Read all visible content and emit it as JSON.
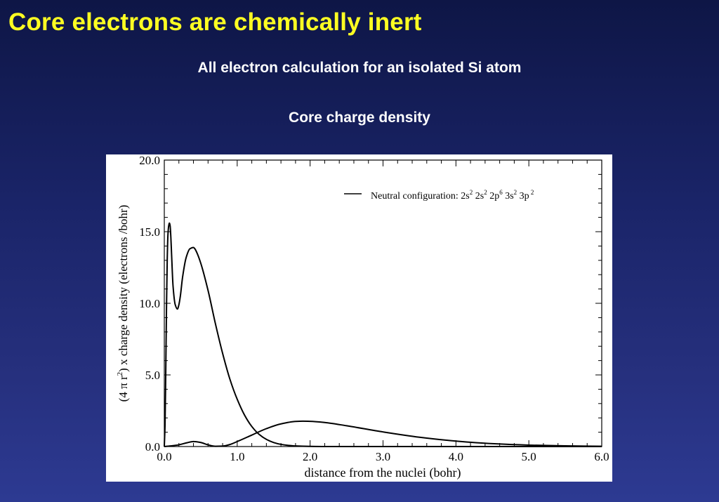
{
  "slide": {
    "title": "Core electrons are chemically inert",
    "subtitle": "All electron calculation for an isolated Si atom",
    "section_label": "Core charge density"
  },
  "colors": {
    "title": "#ffff22",
    "text": "#ffffff",
    "curve": "#000000",
    "plot_background": "#ffffff"
  },
  "chart_data": {
    "type": "line",
    "xlabel": "distance from the nuclei (bohr)",
    "ylabel": "(4 π r²) x charge density (electrons /bohr)",
    "xlim": [
      0.0,
      6.0
    ],
    "ylim": [
      0.0,
      20.0
    ],
    "xticks": [
      "0.0",
      "1.0",
      "2.0",
      "3.0",
      "4.0",
      "5.0",
      "6.0"
    ],
    "yticks": [
      "0.0",
      "5.0",
      "10.0",
      "15.0",
      "20.0"
    ],
    "grid": false,
    "legend": {
      "placement": "top-right",
      "text": "Neutral configuration: 2s² 2s² 2p⁶ 3s² 3p²"
    },
    "series": [
      {
        "x": [
          0.0,
          0.01,
          0.02,
          0.03,
          0.04,
          0.05,
          0.06,
          0.07,
          0.08,
          0.09,
          0.1,
          0.12,
          0.15,
          0.18,
          0.2,
          0.22,
          0.25,
          0.3,
          0.35,
          0.4,
          0.42,
          0.45,
          0.5,
          0.6,
          0.7,
          0.8,
          0.9,
          1.0,
          1.1,
          1.2,
          1.3,
          1.4,
          1.5,
          1.6,
          1.7,
          1.8,
          2.0,
          2.2,
          2.5,
          3.0,
          4.0,
          6.0
        ],
        "values": [
          0.0,
          1.5,
          5.2,
          9.6,
          13.0,
          14.8,
          15.4,
          15.6,
          15.4,
          14.6,
          13.4,
          11.2,
          9.9,
          9.6,
          9.9,
          10.5,
          11.8,
          13.2,
          13.8,
          13.9,
          13.8,
          13.5,
          12.8,
          10.9,
          8.6,
          6.5,
          4.7,
          3.3,
          2.2,
          1.4,
          0.85,
          0.5,
          0.28,
          0.15,
          0.08,
          0.04,
          0.01,
          0.0,
          0.0,
          0.0,
          0.0,
          0.0
        ]
      },
      {
        "x": [
          0.0,
          0.1,
          0.2,
          0.3,
          0.4,
          0.5,
          0.6,
          0.7,
          0.8,
          0.9,
          1.0,
          1.2,
          1.4,
          1.6,
          1.8,
          1.9,
          2.0,
          2.2,
          2.5,
          3.0,
          3.5,
          4.0,
          4.5,
          5.0,
          5.5,
          6.0
        ],
        "values": [
          0.0,
          0.05,
          0.12,
          0.25,
          0.35,
          0.28,
          0.12,
          0.02,
          0.03,
          0.14,
          0.35,
          0.8,
          1.25,
          1.58,
          1.75,
          1.77,
          1.76,
          1.68,
          1.45,
          1.02,
          0.65,
          0.38,
          0.2,
          0.1,
          0.05,
          0.02
        ]
      }
    ]
  }
}
